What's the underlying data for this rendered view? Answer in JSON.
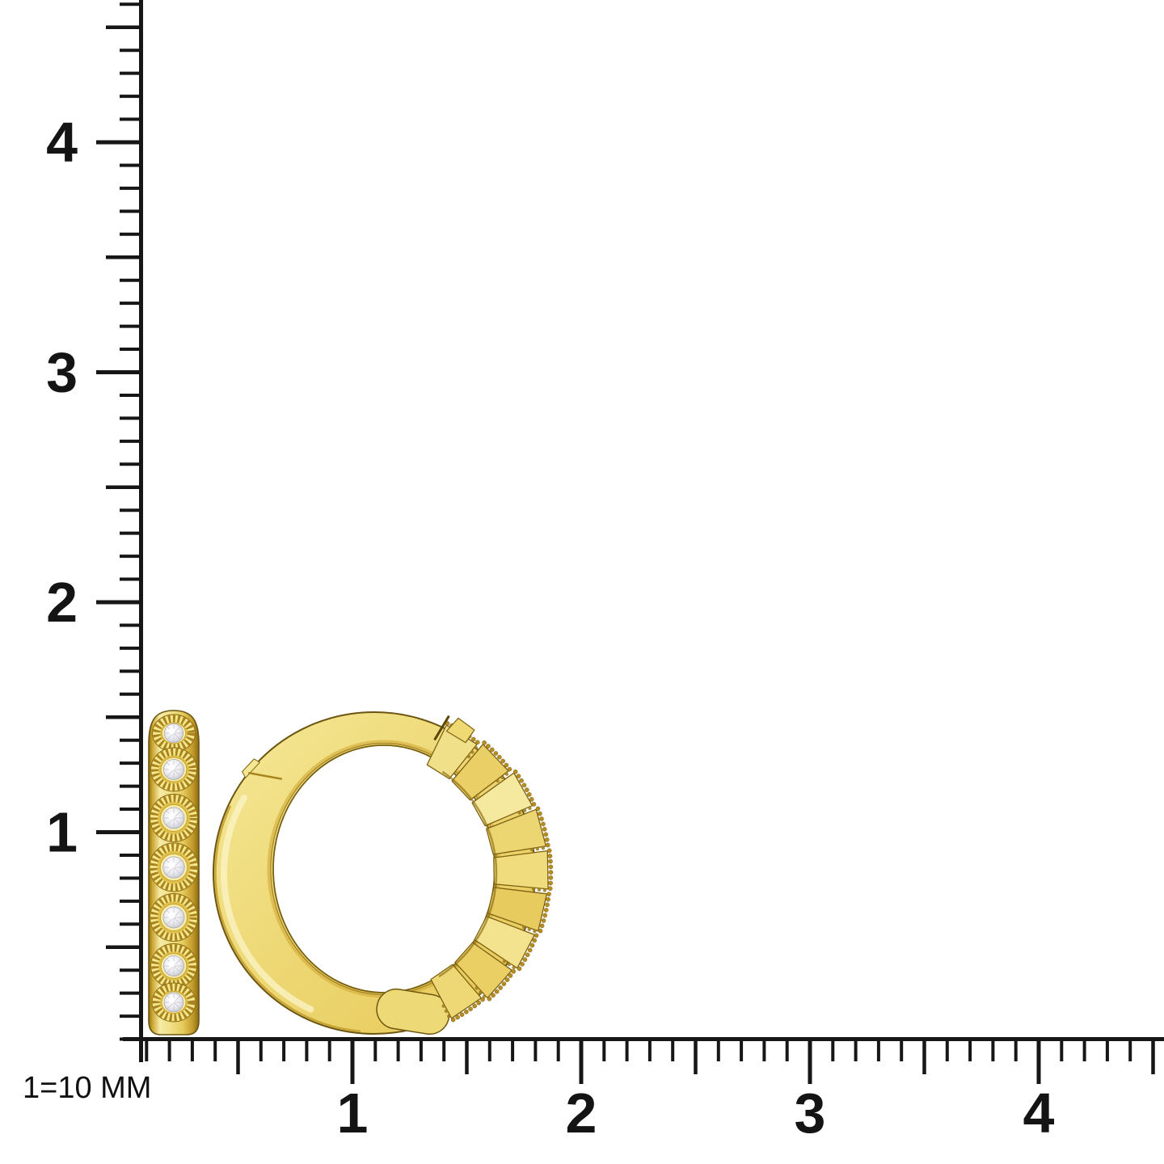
{
  "scale_note": "1=10 MM",
  "rulers": {
    "vertical": {
      "orientation": "vertical",
      "min": 0,
      "max": 4.6,
      "minor_step": 0.1,
      "half_step": 0.5,
      "major_step": 1,
      "labels": [
        {
          "text": "4",
          "value": 4
        },
        {
          "text": "3",
          "value": 3
        },
        {
          "text": "2",
          "value": 2
        },
        {
          "text": "1",
          "value": 1
        }
      ]
    },
    "horizontal": {
      "orientation": "horizontal",
      "min": 0,
      "max": 4.5,
      "minor_step": 0.1,
      "half_step": 0.5,
      "major_step": 1,
      "labels": [
        {
          "text": "1",
          "value": 1
        },
        {
          "text": "2",
          "value": 2
        },
        {
          "text": "3",
          "value": 3
        },
        {
          "text": "4",
          "value": 4
        }
      ]
    }
  },
  "figures": {
    "left": "gold diamond hoop earring - side view",
    "right": "gold diamond hoop earring - front view"
  },
  "colors": {
    "gold": "#EED977",
    "gold_highlight": "#F7ECA8",
    "gold_shadow": "#A8841D",
    "gold_outline": "#6B5510",
    "diamond": "#F2F2F5",
    "ruler_ink": "#161616",
    "background": "#FFFFFF"
  }
}
